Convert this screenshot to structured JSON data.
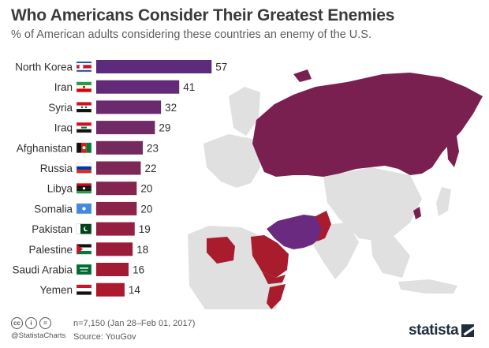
{
  "header": {
    "title": "Who Americans Consider Their Greatest Enemies",
    "subtitle": "% of American adults considering these countries an enemy of the U.S."
  },
  "chart_data": {
    "type": "bar",
    "orientation": "horizontal",
    "title": "Who Americans Consider Their Greatest Enemies",
    "subtitle": "% of American adults considering these countries an enemy of the U.S.",
    "categories": [
      "North Korea",
      "Iran",
      "Syria",
      "Iraq",
      "Afghanistan",
      "Russia",
      "Libya",
      "Somalia",
      "Pakistan",
      "Palestine",
      "Saudi Arabia",
      "Yemen"
    ],
    "values": [
      57,
      41,
      32,
      29,
      23,
      22,
      20,
      20,
      19,
      18,
      16,
      14
    ],
    "colors": [
      "#5e2a7e",
      "#622a77",
      "#6b2a6e",
      "#702a66",
      "#742a5f",
      "#7d2857",
      "#842550",
      "#8c2349",
      "#941f41",
      "#9b1c3a",
      "#a31a33",
      "#ac1a2d"
    ],
    "xlim": [
      0,
      60
    ],
    "grid": false,
    "legend": "none",
    "data_labels": true,
    "flags": [
      "flag-north-korea",
      "flag-iran",
      "flag-syria",
      "flag-iraq",
      "flag-afghanistan",
      "flag-russia",
      "flag-libya",
      "flag-somalia",
      "flag-pakistan",
      "flag-palestine",
      "flag-saudi-arabia",
      "flag-yemen"
    ]
  },
  "map": {
    "highlight_colors": {
      "russia": "#7a2050",
      "iran": "#6a2a80",
      "middle_east": "#a81c2e",
      "other": "#e0e0e0"
    }
  },
  "footer": {
    "license_icons": [
      "cc",
      "i",
      "="
    ],
    "handle": "@StatistaCharts",
    "note": "n=7,150 (Jan 28–Feb 01, 2017)",
    "source": "Source: YouGov",
    "brand": "statista"
  }
}
